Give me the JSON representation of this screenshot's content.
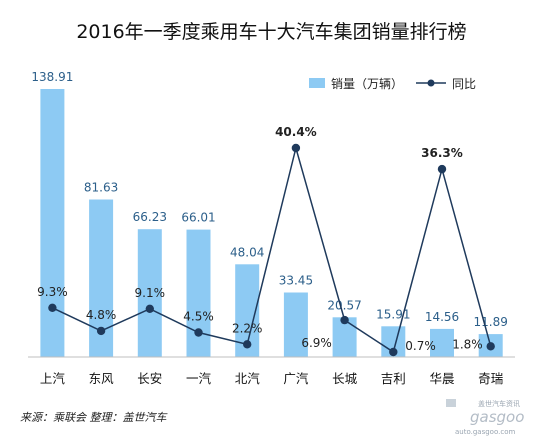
{
  "chart_data": {
    "type": "bar",
    "title": "2016年一季度乘用车十大汽车集团销量排行榜",
    "categories": [
      "上汽",
      "东风",
      "长安",
      "一汽",
      "北汽",
      "广汽",
      "长城",
      "吉利",
      "华晨",
      "奇瑞"
    ],
    "series": [
      {
        "name": "销量（万辆）",
        "type": "bar",
        "color": "#8dcaf3",
        "values": [
          138.91,
          81.63,
          66.23,
          66.01,
          48.04,
          33.45,
          20.57,
          15.91,
          14.56,
          11.89
        ],
        "labels": [
          "138.91",
          "81.63",
          "66.23",
          "66.01",
          "48.04",
          "33.45",
          "20.57",
          "15.91",
          "14.56",
          "11.89"
        ]
      },
      {
        "name": "同比",
        "type": "line",
        "color": "#1f3a5c",
        "values": [
          9.3,
          4.8,
          9.1,
          4.5,
          2.2,
          40.4,
          6.9,
          0.7,
          36.3,
          1.8
        ],
        "labels": [
          "9.3%",
          "4.8%",
          "9.1%",
          "4.5%",
          "2.2%",
          "40.4%",
          "6.9%",
          "0.7%",
          "36.3%",
          "1.8%"
        ],
        "bold_labels": [
          "40.4%",
          "36.3%"
        ]
      }
    ],
    "bar_ylim": [
      0,
      145
    ],
    "line_ylim": [
      -1,
      47
    ],
    "legend": {
      "position": "top-right"
    },
    "grid": false
  },
  "footer": {
    "source": "来源：乘联会    整理：盖世汽车"
  },
  "watermark": {
    "brand": "gasgoo",
    "small_text": "盖世汽车资讯",
    "url": "auto.gasgoo.com"
  }
}
